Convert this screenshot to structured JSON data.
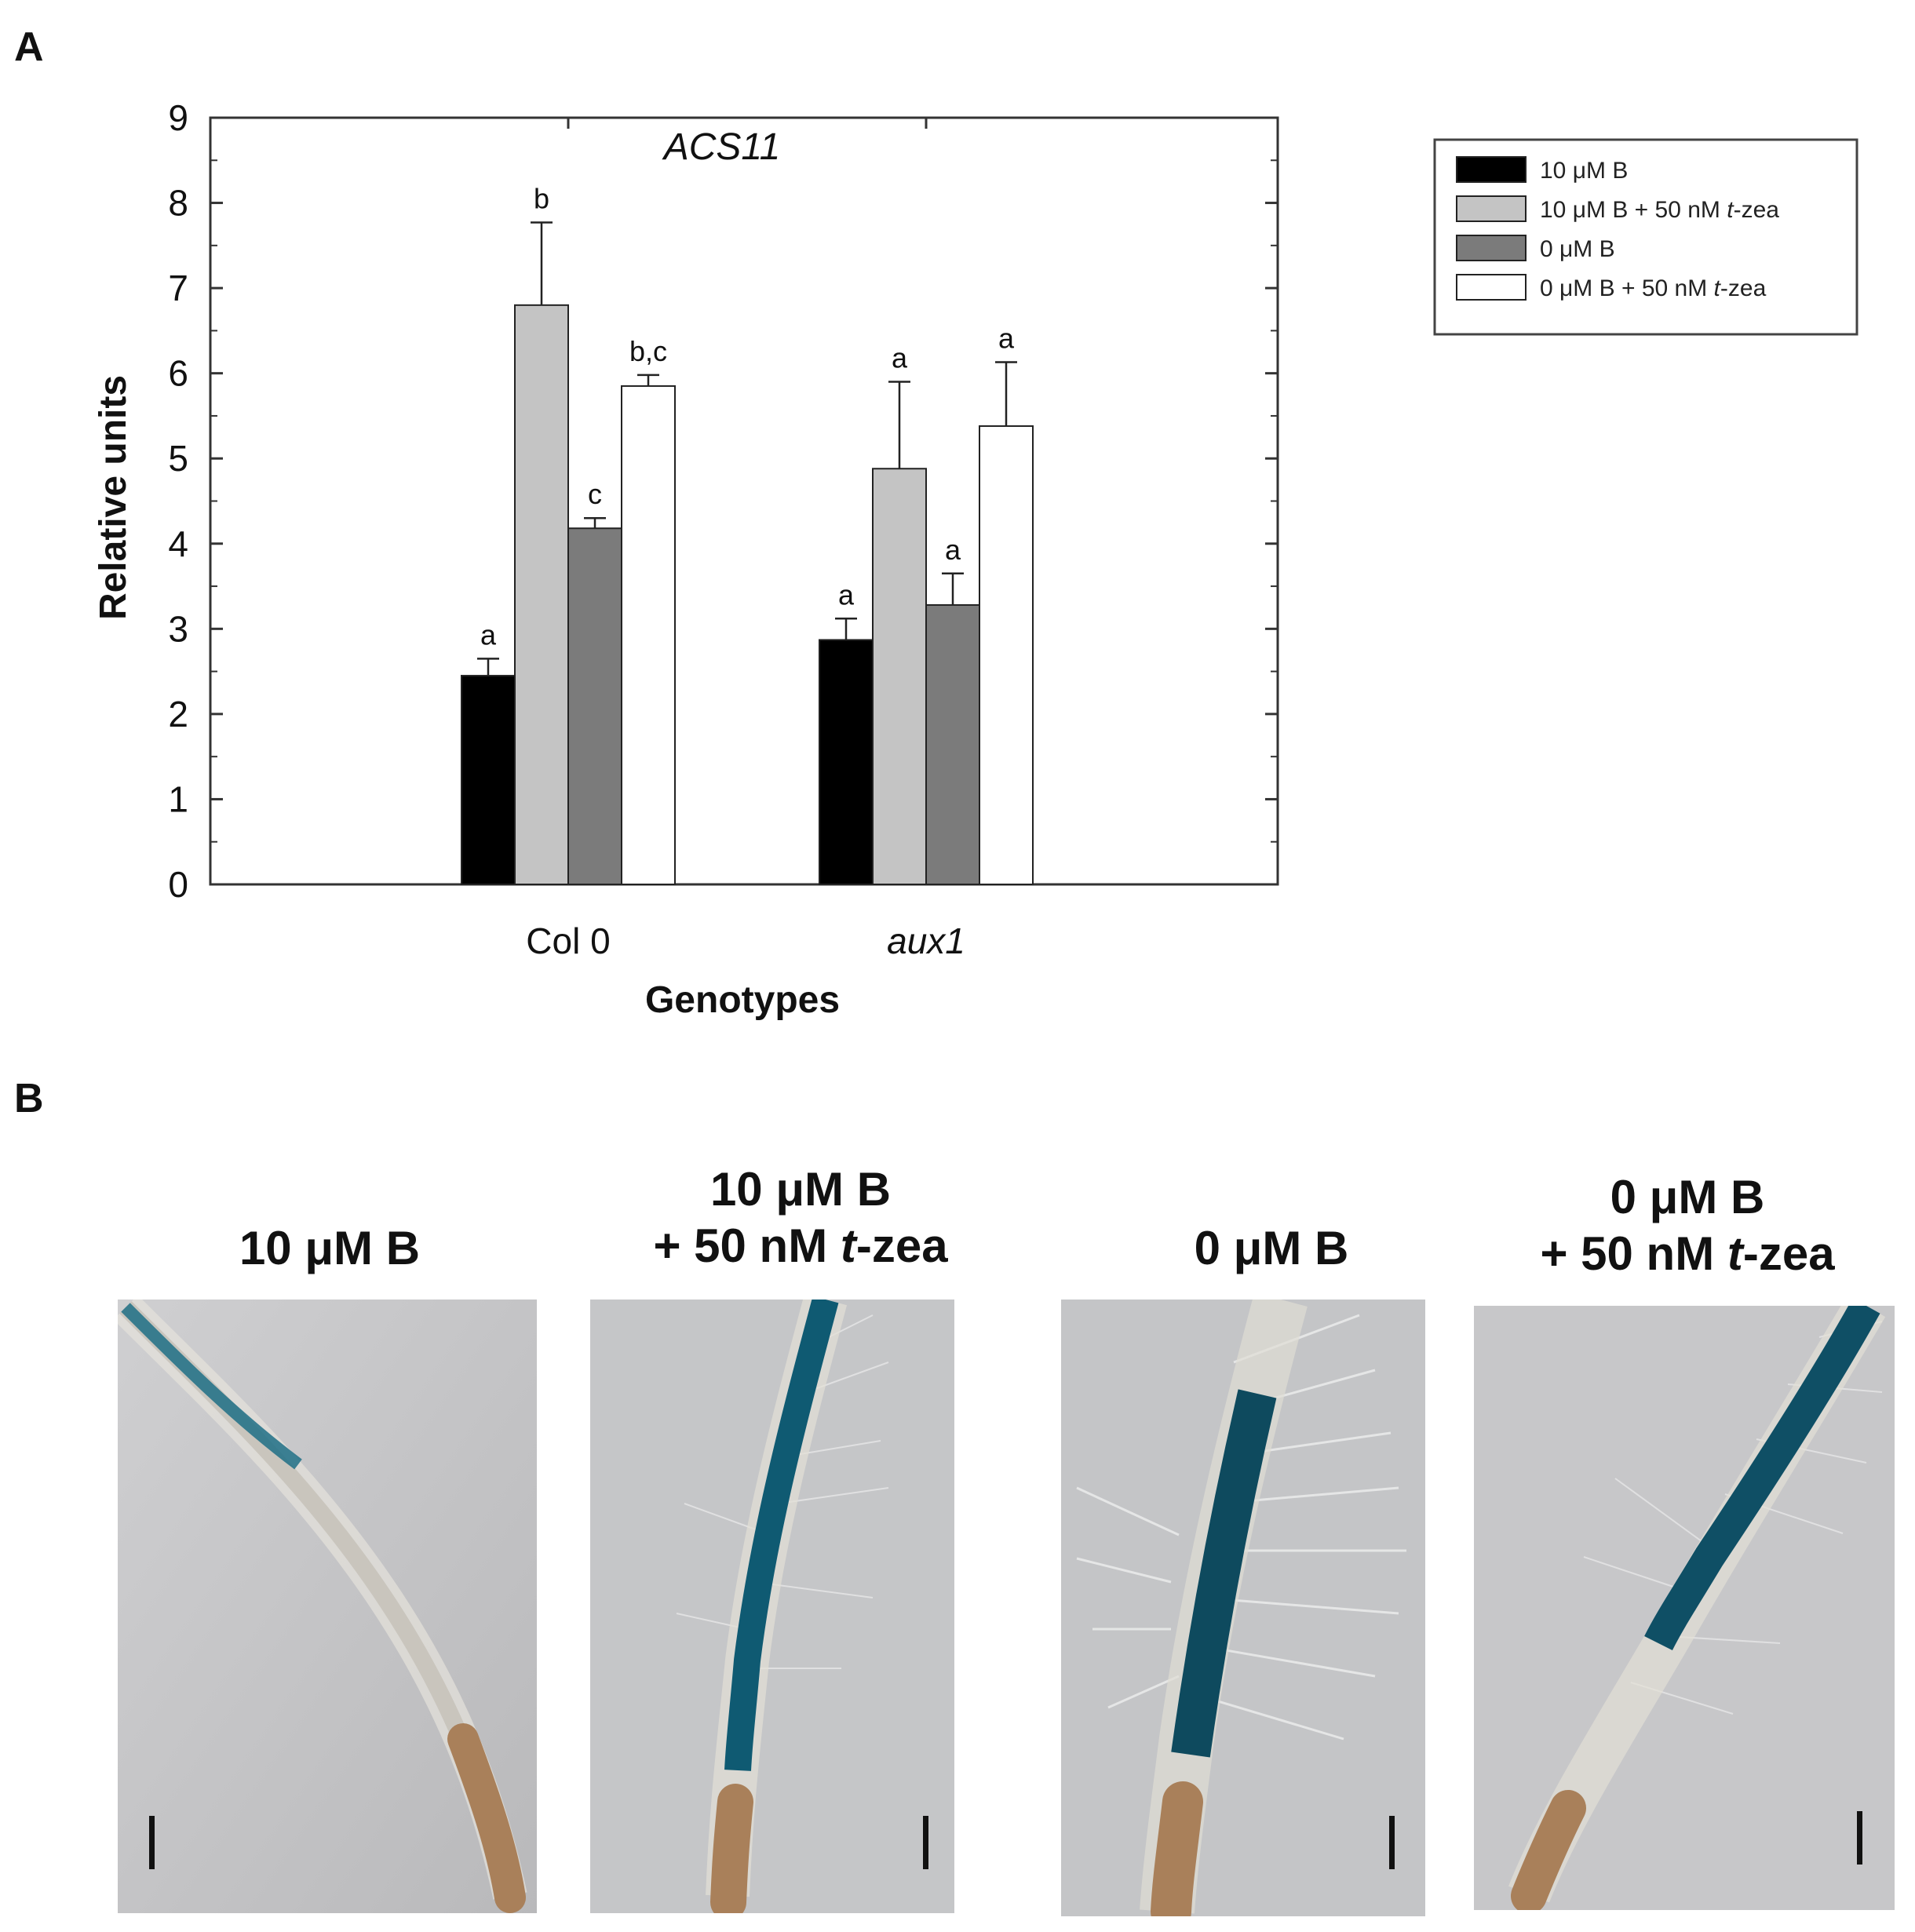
{
  "panel_a_label": "A",
  "panel_b_label": "B",
  "chart_data": {
    "type": "bar",
    "title": "ACS11",
    "xlabel": "Genotypes",
    "ylabel": "Relative units",
    "ylim": [
      0,
      9
    ],
    "yticks": [
      0,
      1,
      2,
      3,
      4,
      5,
      6,
      7,
      8,
      9
    ],
    "categories": [
      "Col 0",
      "aux1"
    ],
    "category_italic": [
      false,
      true
    ],
    "series": [
      {
        "name": "10 μM B",
        "legend_parts": [
          "10 μM B"
        ],
        "color": "#000000",
        "values": [
          2.45,
          2.87
        ],
        "errors": [
          0.2,
          0.25
        ],
        "letters": [
          "a",
          "a"
        ]
      },
      {
        "name": "10 μM B + 50 nM t-zea",
        "legend_parts": [
          "10 μM B + 50 nM ",
          "t",
          "-zea"
        ],
        "color": "#c4c4c4",
        "values": [
          6.8,
          4.88
        ],
        "errors": [
          0.97,
          1.02
        ],
        "letters": [
          "b",
          "a"
        ]
      },
      {
        "name": "0 μM B",
        "legend_parts": [
          "0 μM B"
        ],
        "color": "#7b7b7b",
        "values": [
          4.18,
          3.28
        ],
        "errors": [
          0.12,
          0.37
        ],
        "letters": [
          "c",
          "a"
        ]
      },
      {
        "name": "0 μM B + 50 nM t-zea",
        "legend_parts": [
          "0 μM B + 50 nM ",
          "t",
          "-zea"
        ],
        "color": "#ffffff",
        "values": [
          5.85,
          5.38
        ],
        "errors": [
          0.13,
          0.75
        ],
        "letters": [
          "b,c",
          "a"
        ]
      }
    ],
    "legend_position": "right"
  },
  "photos": [
    {
      "title_lines": [
        "10 μM B"
      ],
      "title_italic_part": ""
    },
    {
      "title_lines": [
        "10 μM B",
        "+ 50 nM ",
        "t",
        "-zea"
      ],
      "title_italic_part": "t"
    },
    {
      "title_lines": [
        "0 μM B"
      ],
      "title_italic_part": ""
    },
    {
      "title_lines": [
        "0 μM B",
        "+ 50 nM ",
        "t",
        "-zea"
      ],
      "title_italic_part": "t"
    }
  ],
  "colors": {
    "photo_background": "#c2c2c4",
    "gus_stain": "#0d4f63",
    "root_tip": "#a9805a"
  }
}
